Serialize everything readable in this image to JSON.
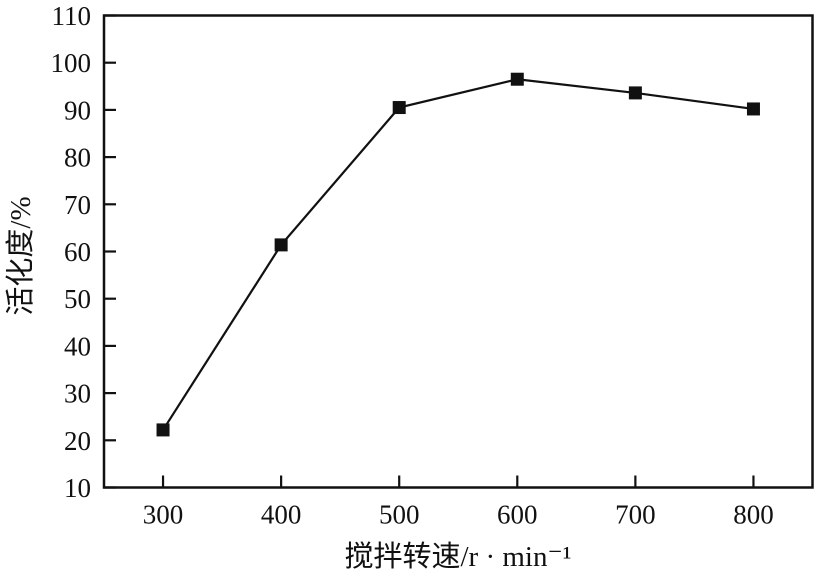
{
  "figure": {
    "background": "#ffffff"
  },
  "chart_data": {
    "type": "line",
    "title": "",
    "xlabel": "搅拌转速/r · min⁻¹",
    "ylabel": "活化度/%",
    "x": [
      300,
      400,
      500,
      600,
      700,
      800
    ],
    "y": [
      22.2,
      61.4,
      90.5,
      96.5,
      93.6,
      90.2
    ],
    "xlim": [
      250,
      850
    ],
    "ylim": [
      10,
      110
    ],
    "xticks": [
      300,
      400,
      500,
      600,
      700,
      800
    ],
    "yticks": [
      10,
      20,
      30,
      40,
      50,
      60,
      70,
      80,
      90,
      100,
      110
    ],
    "grid": false,
    "legend": null,
    "marker": "filled-square",
    "marker_size_px": 13,
    "line_color": "#111111",
    "marker_color": "#111111",
    "axis_color": "#111111",
    "text_color": "#111111"
  }
}
